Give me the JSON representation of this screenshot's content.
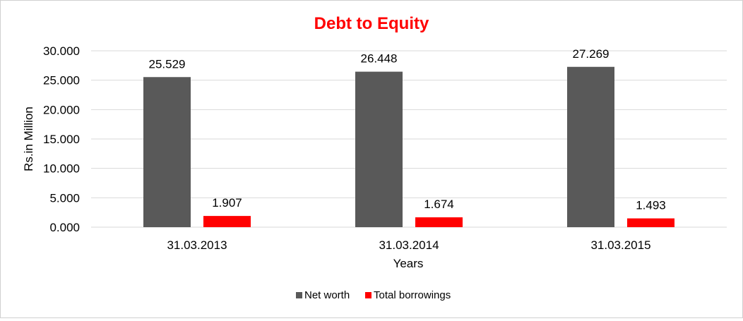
{
  "chart_data": {
    "type": "bar",
    "title": "Debt to Equity",
    "title_color": "#ff0000",
    "xlabel": "Years",
    "ylabel": "Rs.in Million",
    "categories": [
      "31.03.2013",
      "31.03.2014",
      "31.03.2015"
    ],
    "series": [
      {
        "name": "Net worth",
        "color": "#595959",
        "values": [
          25.529,
          26.448,
          27.269
        ],
        "labels": [
          "25.529",
          "26.448",
          "27.269"
        ]
      },
      {
        "name": "Total borrowings",
        "color": "#ff0000",
        "values": [
          1.907,
          1.674,
          1.493
        ],
        "labels": [
          "1.907",
          "1.674",
          "1.493"
        ]
      }
    ],
    "ylim": [
      0,
      30
    ],
    "yticks": [
      0,
      5,
      10,
      15,
      20,
      25,
      30
    ],
    "ytick_labels": [
      "0.000",
      "5.000",
      "10.000",
      "15.000",
      "20.000",
      "25.000",
      "30.000"
    ],
    "grid": true,
    "legend_position": "bottom"
  }
}
